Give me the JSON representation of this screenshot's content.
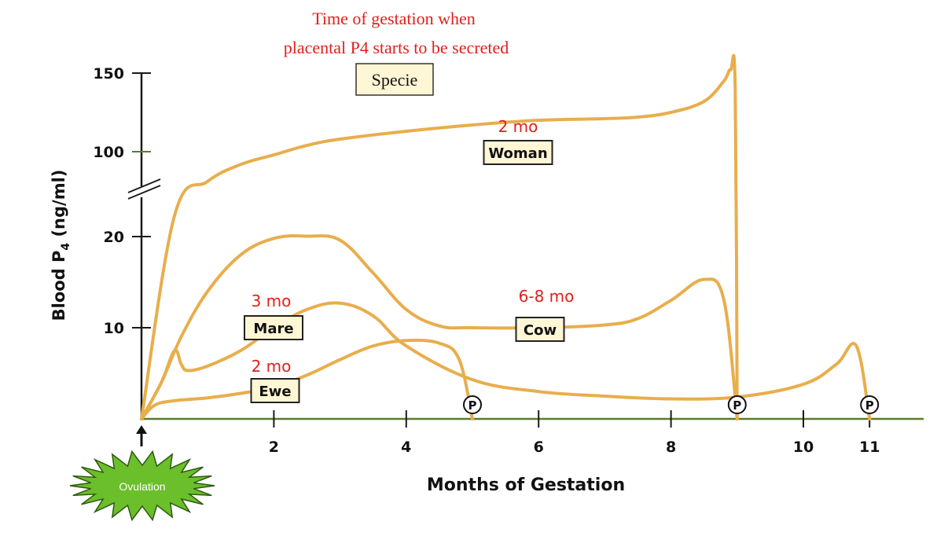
{
  "chart_data": {
    "type": "line",
    "title_lines": [
      "Time of gestation when",
      "placental P4 starts to be secreted"
    ],
    "legend_box": "Specie",
    "xlabel": "Months of Gestation",
    "ylabel_main": "Blood P",
    "ylabel_sub": "4",
    "ylabel_unit": " (ng/ml)",
    "x_ticks": [
      2,
      4,
      6,
      8,
      10,
      11
    ],
    "y_ticks": [
      10,
      20,
      100,
      150
    ],
    "xlim": [
      0,
      11.8
    ],
    "axis_break": "between 20 and 100",
    "ovulation_label": "Ovulation",
    "parturition_symbol": "P",
    "parturition_x": [
      5,
      9,
      11
    ],
    "colors": {
      "curve": "#E8AE4C",
      "annotation": "#E0201B",
      "axis": "#1a1a1a",
      "axis_green": "#5a7d2a",
      "starburst": "#6BBF2A",
      "label_box": "#FFF6D5"
    },
    "series": [
      {
        "name": "Woman",
        "placental_onset": "2 mo",
        "x": [
          0,
          0.5,
          1,
          1.5,
          2,
          2.5,
          3,
          4,
          5,
          6,
          7,
          7.5,
          8,
          8.5,
          8.8,
          8.9,
          8.97,
          9.0
        ],
        "y": [
          0,
          40,
          72,
          88,
          97,
          104,
          108,
          113,
          117,
          120,
          121,
          122,
          125,
          132,
          145,
          152,
          140,
          0
        ]
      },
      {
        "name": "Cow",
        "placental_onset": "6-8 mo",
        "x": [
          0,
          0.3,
          0.6,
          1,
          1.5,
          2,
          2.5,
          3,
          3.5,
          4,
          4.5,
          5,
          6,
          7,
          7.5,
          8,
          8.5,
          8.8,
          9.0
        ],
        "y": [
          0,
          4,
          9,
          14,
          18,
          19.8,
          20.4,
          19.6,
          16,
          12,
          10.2,
          10,
          10,
          10.3,
          11,
          13,
          15.3,
          13,
          0
        ]
      },
      {
        "name": "Mare",
        "placental_onset": "3 mo",
        "x": [
          0,
          0.3,
          0.5,
          0.6,
          0.7,
          1,
          1.5,
          2,
          2.5,
          3,
          3.5,
          4,
          5,
          6,
          7,
          8,
          9,
          10,
          10.5,
          10.8,
          11.0
        ],
        "y": [
          0,
          4,
          7.5,
          6,
          5.3,
          5.8,
          7.5,
          10,
          12,
          12.7,
          11.3,
          8,
          4.3,
          3,
          2.5,
          2.2,
          2.4,
          3.8,
          6,
          8,
          0
        ]
      },
      {
        "name": "Ewe",
        "placental_onset": "2 mo",
        "x": [
          0,
          0.2,
          0.5,
          1,
          1.5,
          2,
          2.5,
          3,
          3.5,
          4,
          4.5,
          4.8,
          5.0
        ],
        "y": [
          0,
          1.5,
          2,
          2.3,
          2.8,
          3.5,
          4.8,
          6.5,
          8,
          8.6,
          8.3,
          6.5,
          0
        ]
      }
    ]
  }
}
